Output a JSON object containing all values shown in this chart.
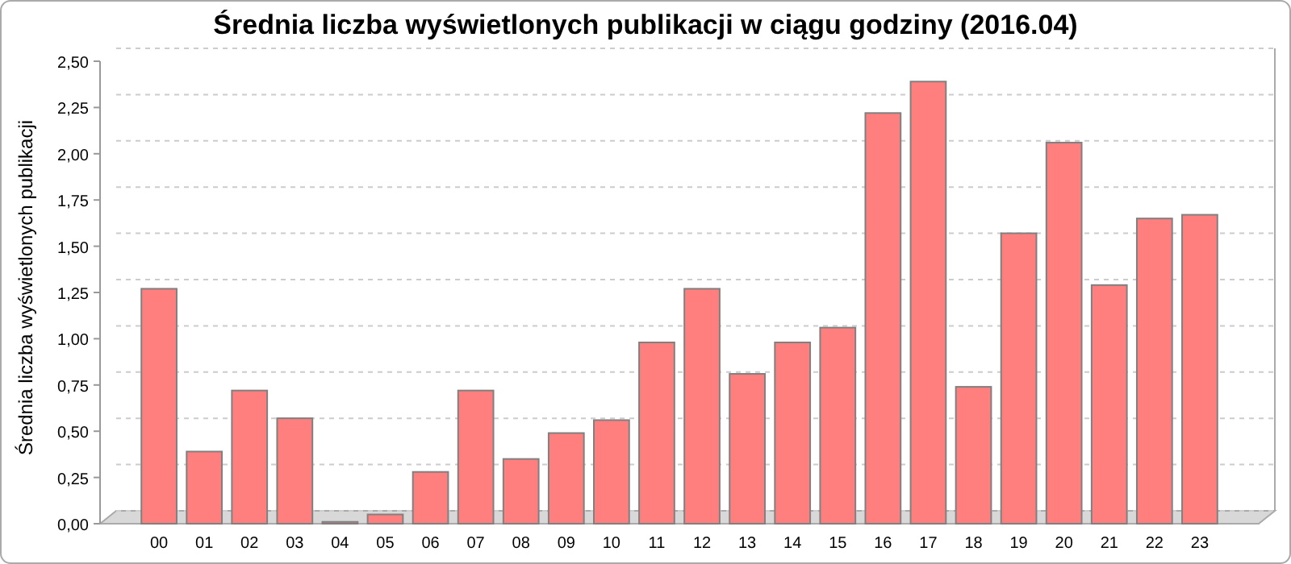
{
  "chart_data": {
    "type": "bar",
    "title": "Średnia liczba wyświetlonych publikacji w ciągu godziny (2016.04)",
    "ylabel": "Średnia liczba wyświetlonych publikacji",
    "categories": [
      "00",
      "01",
      "02",
      "03",
      "04",
      "05",
      "06",
      "07",
      "08",
      "09",
      "10",
      "11",
      "12",
      "13",
      "14",
      "15",
      "16",
      "17",
      "18",
      "19",
      "20",
      "21",
      "22",
      "23"
    ],
    "values": [
      1.27,
      0.39,
      0.72,
      0.57,
      0.01,
      0.05,
      0.28,
      0.72,
      0.35,
      0.49,
      0.56,
      0.98,
      1.27,
      0.81,
      0.98,
      1.06,
      2.22,
      2.39,
      0.74,
      1.57,
      2.06,
      1.29,
      1.65,
      1.67
    ],
    "color": "#ff7f7f",
    "ylim": [
      0,
      2.5
    ],
    "yticks": [
      {
        "value": 0,
        "label": "0,00"
      },
      {
        "value": 0.25,
        "label": "0,25"
      },
      {
        "value": 0.5,
        "label": "0,50"
      },
      {
        "value": 0.75,
        "label": "0,75"
      },
      {
        "value": 1,
        "label": "1,00"
      },
      {
        "value": 1.25,
        "label": "1,25"
      },
      {
        "value": 1.5,
        "label": "1,50"
      },
      {
        "value": 1.75,
        "label": "1,75"
      },
      {
        "value": 2,
        "label": "2,00"
      },
      {
        "value": 2.25,
        "label": "2,25"
      },
      {
        "value": 2.5,
        "label": "2,50"
      }
    ],
    "grid": "y"
  }
}
